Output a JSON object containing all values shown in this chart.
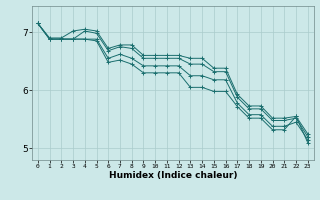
{
  "title": "",
  "xlabel": "Humidex (Indice chaleur)",
  "background_color": "#cce8e8",
  "grid_color": "#aacccc",
  "line_color": "#1a6e6e",
  "xlim": [
    -0.5,
    23.5
  ],
  "ylim": [
    4.8,
    7.45
  ],
  "yticks": [
    5,
    6,
    7
  ],
  "xticks": [
    0,
    1,
    2,
    3,
    4,
    5,
    6,
    7,
    8,
    9,
    10,
    11,
    12,
    13,
    14,
    15,
    16,
    17,
    18,
    19,
    20,
    21,
    22,
    23
  ],
  "series": [
    [
      7.15,
      6.9,
      6.9,
      7.02,
      7.05,
      7.02,
      6.72,
      6.78,
      6.78,
      6.6,
      6.6,
      6.6,
      6.6,
      6.55,
      6.55,
      6.38,
      6.38,
      5.93,
      5.73,
      5.73,
      5.52,
      5.52,
      5.55,
      5.25
    ],
    [
      7.15,
      6.88,
      6.88,
      6.88,
      7.02,
      6.98,
      6.68,
      6.75,
      6.72,
      6.55,
      6.55,
      6.55,
      6.55,
      6.45,
      6.45,
      6.32,
      6.32,
      5.88,
      5.68,
      5.68,
      5.48,
      5.48,
      5.52,
      5.2
    ],
    [
      7.15,
      6.88,
      6.88,
      6.88,
      6.88,
      6.88,
      6.55,
      6.62,
      6.55,
      6.42,
      6.42,
      6.42,
      6.42,
      6.25,
      6.25,
      6.18,
      6.18,
      5.78,
      5.58,
      5.58,
      5.38,
      5.38,
      5.45,
      5.15
    ],
    [
      7.15,
      6.88,
      6.88,
      6.88,
      6.88,
      6.85,
      6.48,
      6.52,
      6.45,
      6.3,
      6.3,
      6.3,
      6.3,
      6.05,
      6.05,
      5.98,
      5.98,
      5.72,
      5.52,
      5.52,
      5.32,
      5.32,
      5.55,
      5.1
    ]
  ]
}
